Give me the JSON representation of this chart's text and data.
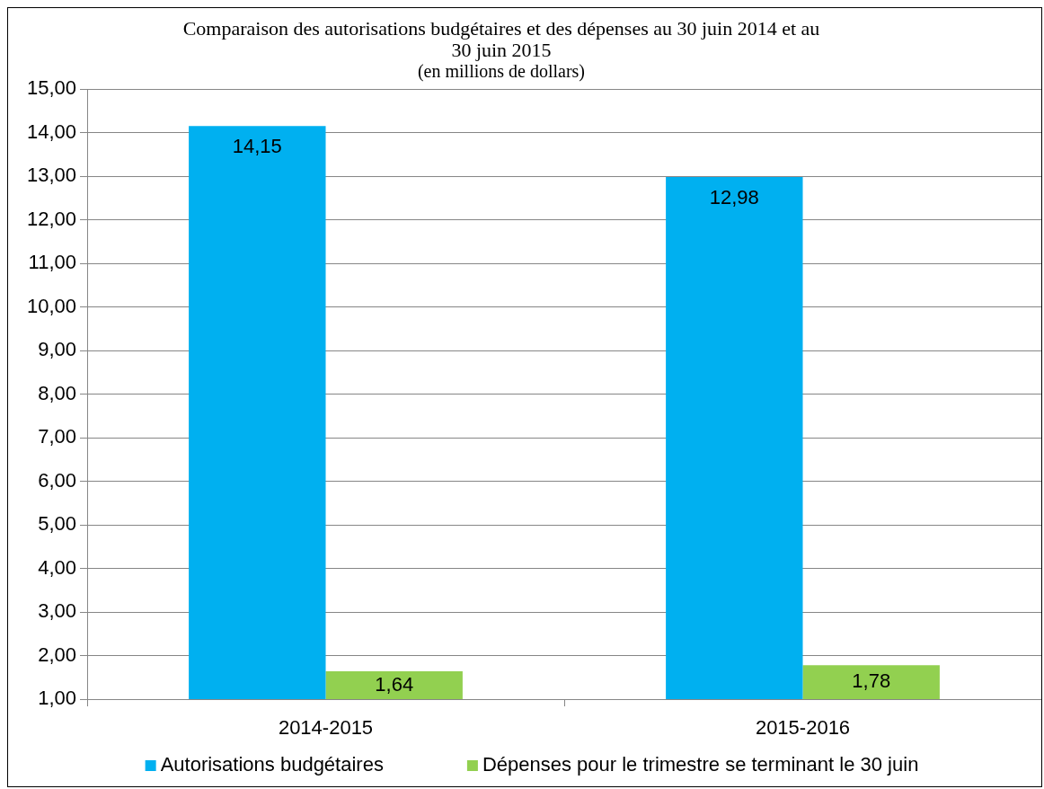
{
  "chart_data": {
    "type": "bar",
    "title": "Comparaison des autorisations budgétaires et des dépenses au 30 juin 2014 et au\n30 juin 2015",
    "subtitle": "(en millions de dollars)",
    "categories": [
      "2014-2015",
      "2015-2016"
    ],
    "series": [
      {
        "name": "Autorisations budgétaires",
        "color": "#00b0f0",
        "values": [
          14.15,
          12.98
        ],
        "value_labels": [
          "14,15",
          "12,98"
        ]
      },
      {
        "name": "Dépenses pour le trimestre se terminant le 30 juin",
        "color": "#92d050",
        "values": [
          1.64,
          1.78
        ],
        "value_labels": [
          "1,64",
          "1,78"
        ]
      }
    ],
    "ylim": [
      1,
      15
    ],
    "yticks": [
      {
        "value": 1,
        "label": "1,00"
      },
      {
        "value": 2,
        "label": "2,00"
      },
      {
        "value": 3,
        "label": "3,00"
      },
      {
        "value": 4,
        "label": "4,00"
      },
      {
        "value": 5,
        "label": "5,00"
      },
      {
        "value": 6,
        "label": "6,00"
      },
      {
        "value": 7,
        "label": "7,00"
      },
      {
        "value": 8,
        "label": "8,00"
      },
      {
        "value": 9,
        "label": "9,00"
      },
      {
        "value": 10,
        "label": "10,00"
      },
      {
        "value": 11,
        "label": "11,00"
      },
      {
        "value": 12,
        "label": "12,00"
      },
      {
        "value": 13,
        "label": "13,00"
      },
      {
        "value": 14,
        "label": "14,00"
      },
      {
        "value": 15,
        "label": "15,00"
      }
    ],
    "grid": "y",
    "legend": "bottom"
  }
}
